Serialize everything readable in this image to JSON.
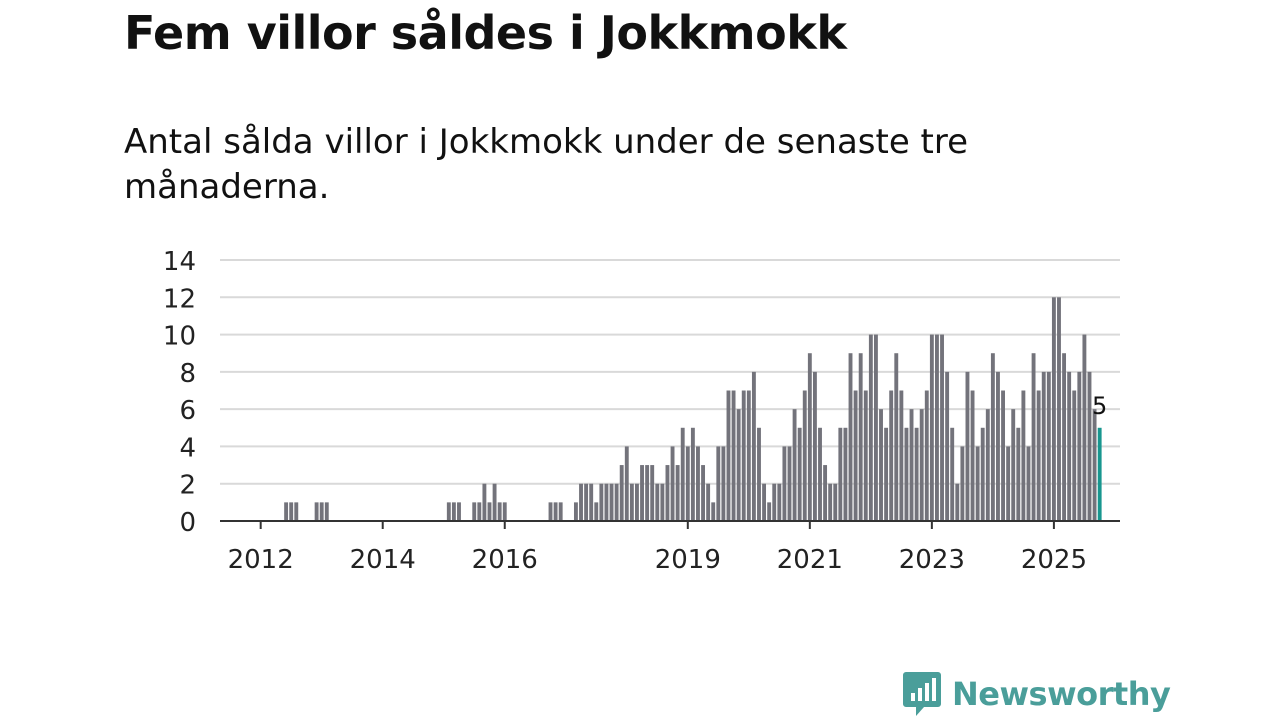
{
  "title": "Fem villor såldes i Jokkmokk",
  "subtitle": "Antal sålda villor i Jokkmokk under de senaste tre månaderna.",
  "brand": "Newsworthy",
  "colors": {
    "bar": "#73737b",
    "highlight": "#18968f",
    "grid": "#d9d9d9",
    "axis": "#333333",
    "brand": "#4a9e9a"
  },
  "chart_data": {
    "type": "bar",
    "ylim": [
      0,
      14
    ],
    "yticks": [
      0,
      2,
      4,
      6,
      8,
      10,
      12,
      14
    ],
    "xlim": [
      2011.3333,
      2026.0833
    ],
    "xticks": [
      2012,
      2014,
      2016,
      2019,
      2021,
      2023,
      2025
    ],
    "grid": true,
    "last_label": "5",
    "x_start": "2011-05",
    "values": [
      0,
      0,
      0,
      0,
      0,
      0,
      0,
      0,
      0,
      0,
      0,
      0,
      0,
      1,
      1,
      1,
      0,
      0,
      0,
      1,
      1,
      1,
      0,
      0,
      0,
      0,
      0,
      0,
      0,
      0,
      0,
      0,
      0,
      0,
      0,
      0,
      0,
      0,
      0,
      0,
      0,
      0,
      0,
      0,
      0,
      1,
      1,
      1,
      0,
      0,
      1,
      1,
      2,
      1,
      2,
      1,
      1,
      0,
      0,
      0,
      0,
      0,
      0,
      0,
      0,
      1,
      1,
      1,
      0,
      0,
      1,
      2,
      2,
      2,
      1,
      2,
      2,
      2,
      2,
      3,
      4,
      2,
      2,
      3,
      3,
      3,
      2,
      2,
      3,
      4,
      3,
      5,
      4,
      5,
      4,
      3,
      2,
      1,
      4,
      4,
      7,
      7,
      6,
      7,
      7,
      8,
      5,
      2,
      1,
      2,
      2,
      4,
      4,
      6,
      5,
      7,
      9,
      8,
      5,
      3,
      2,
      2,
      5,
      5,
      9,
      7,
      9,
      7,
      10,
      10,
      6,
      5,
      7,
      9,
      7,
      5,
      6,
      5,
      6,
      7,
      10,
      10,
      10,
      8,
      5,
      2,
      4,
      8,
      7,
      4,
      5,
      6,
      9,
      8,
      7,
      4,
      6,
      5,
      7,
      4,
      9,
      7,
      8,
      8,
      12,
      12,
      9,
      8,
      7,
      8,
      10,
      8,
      6,
      5
    ]
  }
}
